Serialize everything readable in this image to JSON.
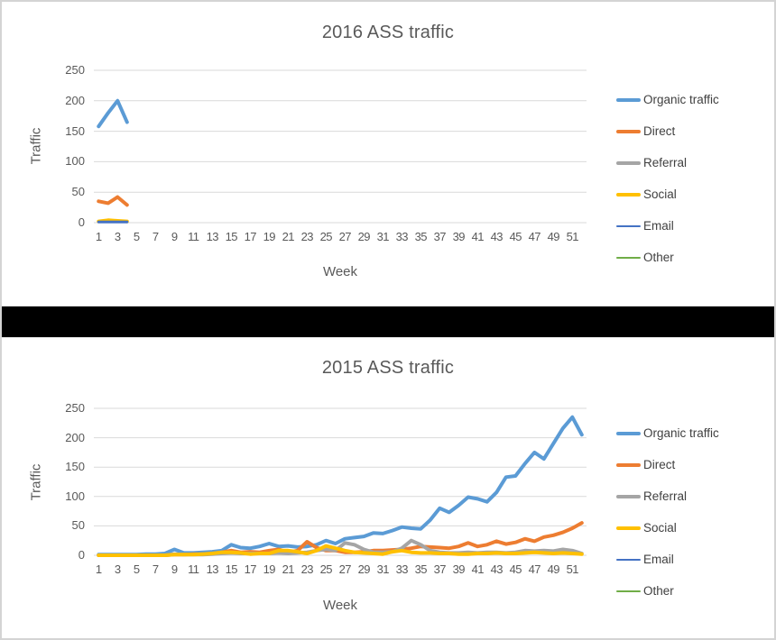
{
  "page": {
    "background": "#ffffff",
    "divider_color": "#000000",
    "grid_color": "#d9d9d9",
    "text_color": "#595959",
    "legend_text_color": "#404040"
  },
  "chart_data": [
    {
      "type": "line",
      "title": "2016 ASS traffic",
      "xlabel": "Week",
      "ylabel": "Traffic",
      "ylim": [
        0,
        250
      ],
      "y_ticks": [
        0,
        50,
        100,
        150,
        200,
        250
      ],
      "x_ticks": [
        1,
        3,
        5,
        7,
        9,
        11,
        13,
        15,
        17,
        19,
        21,
        23,
        25,
        27,
        29,
        31,
        33,
        35,
        37,
        39,
        41,
        43,
        45,
        47,
        49,
        51
      ],
      "x_count": 52,
      "grid": "horizontal",
      "legend_position": "right",
      "series": [
        {
          "name": "Organic traffic",
          "color": "#5B9BD5",
          "width": 4,
          "values": [
            158,
            180,
            200,
            165
          ]
        },
        {
          "name": "Direct",
          "color": "#ED7D31",
          "width": 4,
          "values": [
            35,
            32,
            42,
            29
          ]
        },
        {
          "name": "Referral",
          "color": "#A5A5A5",
          "width": 4,
          "values": []
        },
        {
          "name": "Social",
          "color": "#FFC000",
          "width": 4,
          "values": [
            2,
            4,
            3,
            2
          ]
        },
        {
          "name": "Email",
          "color": "#4472C4",
          "width": 3,
          "values": [
            1,
            1,
            1,
            1
          ]
        },
        {
          "name": "Other",
          "color": "#70AD47",
          "width": 2.5,
          "values": []
        }
      ]
    },
    {
      "type": "line",
      "title": "2015 ASS traffic",
      "xlabel": "Week",
      "ylabel": "Traffic",
      "ylim": [
        0,
        250
      ],
      "y_ticks": [
        0,
        50,
        100,
        150,
        200,
        250
      ],
      "x_ticks": [
        1,
        3,
        5,
        7,
        9,
        11,
        13,
        15,
        17,
        19,
        21,
        23,
        25,
        27,
        29,
        31,
        33,
        35,
        37,
        39,
        41,
        43,
        45,
        47,
        49,
        51
      ],
      "x_count": 52,
      "grid": "horizontal",
      "legend_position": "right",
      "series": [
        {
          "name": "Organic traffic",
          "color": "#5B9BD5",
          "width": 4,
          "values": [
            1,
            1,
            1,
            1,
            1,
            2,
            2,
            3,
            10,
            4,
            4,
            5,
            6,
            8,
            18,
            13,
            12,
            15,
            20,
            15,
            16,
            14,
            15,
            18,
            25,
            20,
            28,
            30,
            32,
            38,
            37,
            42,
            48,
            46,
            45,
            60,
            80,
            73,
            85,
            99,
            96,
            91,
            107,
            133,
            135,
            156,
            175,
            164,
            190,
            216,
            235,
            205
          ]
        },
        {
          "name": "Direct",
          "color": "#ED7D31",
          "width": 4,
          "values": [
            0,
            0,
            0,
            0,
            0,
            0,
            0,
            0,
            1,
            1,
            2,
            2,
            3,
            5,
            8,
            5,
            6,
            5,
            8,
            10,
            5,
            8,
            23,
            13,
            8,
            8,
            5,
            5,
            6,
            8,
            8,
            9,
            10,
            12,
            15,
            14,
            13,
            12,
            15,
            21,
            15,
            18,
            24,
            19,
            22,
            28,
            24,
            31,
            34,
            39,
            46,
            55
          ]
        },
        {
          "name": "Referral",
          "color": "#A5A5A5",
          "width": 4,
          "values": [
            0,
            0,
            0,
            0,
            0,
            0,
            0,
            0,
            2,
            1,
            1,
            1,
            2,
            3,
            4,
            3,
            3,
            3,
            3,
            4,
            3,
            4,
            5,
            8,
            10,
            8,
            21,
            18,
            10,
            5,
            5,
            6,
            12,
            25,
            18,
            8,
            5,
            4,
            4,
            5,
            4,
            5,
            5,
            4,
            5,
            8,
            7,
            8,
            7,
            10,
            8,
            3
          ]
        },
        {
          "name": "Social",
          "color": "#FFC000",
          "width": 4,
          "values": [
            0,
            0,
            0,
            0,
            0,
            0,
            0,
            0,
            1,
            1,
            1,
            2,
            3,
            5,
            5,
            4,
            2,
            3,
            3,
            8,
            8,
            6,
            3,
            8,
            16,
            12,
            8,
            5,
            4,
            3,
            2,
            6,
            8,
            5,
            4,
            4,
            3,
            3,
            2,
            2,
            3,
            3,
            4,
            3,
            3,
            4,
            5,
            4,
            3,
            4,
            3,
            2
          ]
        },
        {
          "name": "Email",
          "color": "#4472C4",
          "width": 3,
          "values": []
        },
        {
          "name": "Other",
          "color": "#70AD47",
          "width": 2.5,
          "values": []
        }
      ]
    }
  ]
}
